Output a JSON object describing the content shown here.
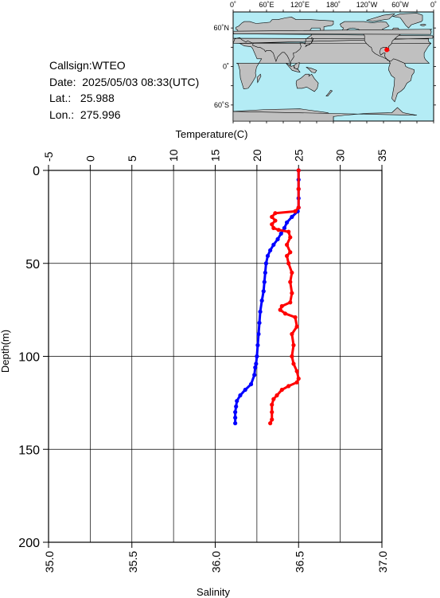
{
  "info": {
    "callsign": "Callsign:WTEO",
    "date": "Date:  2025/05/03 08:33(UTC)",
    "lat": "Lat.:   25.988",
    "lon": "Lon.:  275.996"
  },
  "map": {
    "top_labels": [
      "0˚",
      "60˚E",
      "120˚E",
      "180˚",
      "120˚W",
      "60˚W",
      "0˚"
    ],
    "left_labels": [
      "60˚N",
      "0˚",
      "60˚S"
    ],
    "marker": {
      "lat": 25.988,
      "lon": 275.996
    },
    "colors": {
      "ocean": "#b4ecf5",
      "land": "#c0c0c0",
      "marker": "#ff0000"
    }
  },
  "chart_data": {
    "type": "line",
    "title": "",
    "ylabel": "Depth(m)",
    "top_axis": {
      "label": "Temperature(C)",
      "range": [
        -5,
        35
      ],
      "ticks": [
        "-5",
        "0",
        "5",
        "10",
        "15",
        "20",
        "25",
        "30",
        "35"
      ]
    },
    "bottom_axis": {
      "label": "Salinity",
      "range": [
        35.0,
        37.0
      ],
      "ticks": [
        "35.0",
        "35.5",
        "36.0",
        "36.5",
        "37.0"
      ]
    },
    "y_axis": {
      "range": [
        0,
        200
      ],
      "inverted": true,
      "ticks": [
        "0",
        "50",
        "100",
        "150",
        "200"
      ]
    },
    "grid": true,
    "series": [
      {
        "name": "",
        "axis": "temperature",
        "color": "#0000ff",
        "points": [
          [
            25.0,
            0
          ],
          [
            25.0,
            5
          ],
          [
            25.0,
            10
          ],
          [
            25.0,
            15
          ],
          [
            25.0,
            20
          ],
          [
            24.9,
            22
          ],
          [
            24.2,
            25
          ],
          [
            23.6,
            28
          ],
          [
            23.3,
            31
          ],
          [
            22.9,
            34
          ],
          [
            22.5,
            37
          ],
          [
            22.0,
            40
          ],
          [
            21.6,
            43
          ],
          [
            21.3,
            46
          ],
          [
            21.1,
            50
          ],
          [
            21.0,
            55
          ],
          [
            20.9,
            60
          ],
          [
            20.8,
            65
          ],
          [
            20.6,
            70
          ],
          [
            20.4,
            76
          ],
          [
            20.3,
            82
          ],
          [
            20.2,
            88
          ],
          [
            20.1,
            94
          ],
          [
            20.0,
            100
          ],
          [
            19.9,
            104
          ],
          [
            19.8,
            106
          ],
          [
            19.7,
            110
          ],
          [
            19.3,
            115
          ],
          [
            18.6,
            118
          ],
          [
            18.0,
            121
          ],
          [
            17.6,
            124
          ],
          [
            17.5,
            127
          ],
          [
            17.4,
            130
          ],
          [
            17.4,
            133
          ],
          [
            17.4,
            136
          ]
        ]
      },
      {
        "name": "",
        "axis": "salinity",
        "color": "#ff0000",
        "points": [
          [
            36.5,
            0
          ],
          [
            36.5,
            10
          ],
          [
            36.5,
            20
          ],
          [
            36.48,
            22
          ],
          [
            36.36,
            23
          ],
          [
            36.34,
            25
          ],
          [
            36.36,
            27
          ],
          [
            36.34,
            29
          ],
          [
            36.35,
            31
          ],
          [
            36.38,
            32
          ],
          [
            36.44,
            33
          ],
          [
            36.45,
            36
          ],
          [
            36.43,
            40
          ],
          [
            36.45,
            44
          ],
          [
            36.43,
            46
          ],
          [
            36.44,
            50
          ],
          [
            36.46,
            55
          ],
          [
            36.45,
            60
          ],
          [
            36.46,
            66
          ],
          [
            36.45,
            71
          ],
          [
            36.4,
            73
          ],
          [
            36.39,
            75
          ],
          [
            36.42,
            77
          ],
          [
            36.48,
            79
          ],
          [
            36.49,
            84
          ],
          [
            36.46,
            88
          ],
          [
            36.47,
            94
          ],
          [
            36.46,
            100
          ],
          [
            36.47,
            104
          ],
          [
            36.49,
            108
          ],
          [
            36.5,
            112
          ],
          [
            36.49,
            114
          ],
          [
            36.44,
            116
          ],
          [
            36.4,
            118
          ],
          [
            36.37,
            121
          ],
          [
            36.35,
            123
          ],
          [
            36.34,
            126
          ],
          [
            36.34,
            130
          ],
          [
            36.34,
            134
          ],
          [
            36.33,
            136
          ]
        ]
      }
    ]
  }
}
